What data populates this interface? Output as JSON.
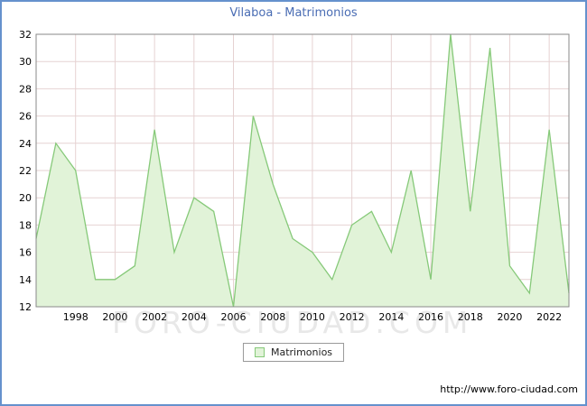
{
  "title": "Vilaboa - Matrimonios",
  "chart_data": {
    "type": "area",
    "title": "Vilaboa - Matrimonios",
    "xlabel": "",
    "ylabel": "",
    "years": [
      1996,
      1997,
      1998,
      1999,
      2000,
      2001,
      2002,
      2003,
      2004,
      2005,
      2006,
      2007,
      2008,
      2009,
      2010,
      2011,
      2012,
      2013,
      2014,
      2015,
      2016,
      2017,
      2018,
      2019,
      2020,
      2021,
      2022,
      2023
    ],
    "values": [
      17,
      24,
      22,
      14,
      14,
      15,
      25,
      16,
      20,
      19,
      12,
      26,
      21,
      17,
      16,
      14,
      18,
      19,
      16,
      22,
      14,
      32,
      19,
      31,
      15,
      13,
      25,
      13
    ],
    "ylim": [
      12,
      32
    ],
    "y_tick_step": 2,
    "y_tick_labels": [
      "12",
      "14",
      "16",
      "18",
      "20",
      "22",
      "24",
      "26",
      "28",
      "30",
      "32"
    ],
    "x_tick_labels": [
      "1998",
      "2000",
      "2002",
      "2004",
      "2006",
      "2008",
      "2010",
      "2012",
      "2014",
      "2016",
      "2018",
      "2020",
      "2022"
    ],
    "grid": true,
    "legend_position": "bottom",
    "series_name": "Matrimonios",
    "colors": {
      "area_fill": "#e1f3d8",
      "line": "#86c979",
      "grid": "#e6d2d2",
      "plot_border": "#8a8a8a",
      "title": "#4a6db4"
    }
  },
  "legend": {
    "label": "Matrimonios"
  },
  "watermark": "FORO-CIUDAD.COM",
  "footer": {
    "url": "http://www.foro-ciudad.com"
  }
}
